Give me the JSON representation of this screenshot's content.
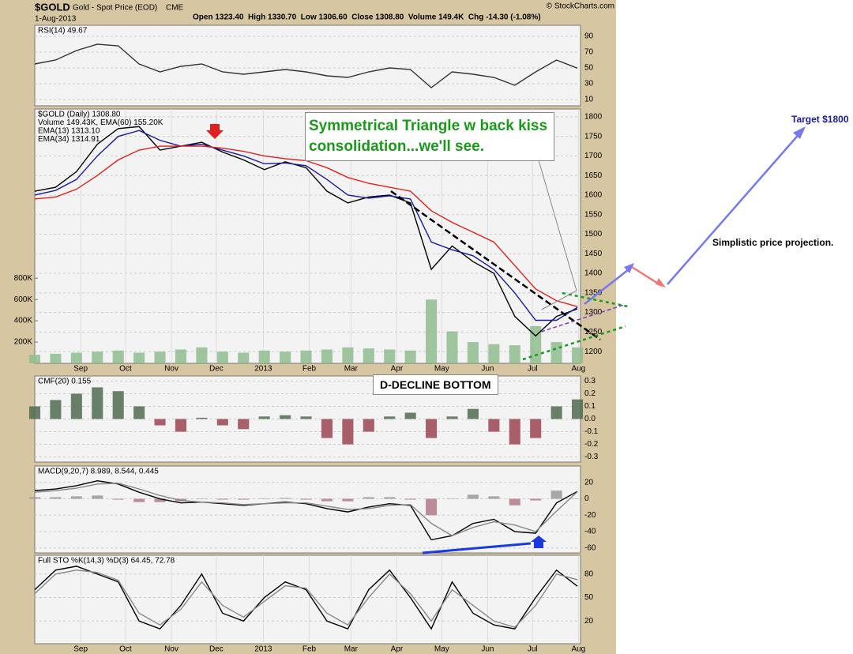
{
  "header": {
    "symbol": "$GOLD",
    "name": "Gold - Spot Price (EOD)",
    "exchange": "CME",
    "date": "1-Aug-2013",
    "quote": "Open 1323.40  High 1330.70  Low 1306.60  Close 1308.80  Volume 149.4K  Chg -14.30 (-1.08%)",
    "credit": "© StockCharts.com"
  },
  "annotations": {
    "triangle": "Symmetrical Triangle w back kiss consolidation...we'll see.",
    "bottom": "D-DECLINE BOTTOM",
    "target": "Target $1800",
    "projection": "Simplistic price projection."
  },
  "chart_data": [
    {
      "type": "line",
      "title": "RSI(14) 49.67",
      "x": [
        0,
        2,
        4,
        6,
        8,
        10,
        12,
        14,
        16,
        18,
        20,
        22,
        24,
        26,
        28,
        30,
        32,
        34,
        36,
        38,
        40,
        42,
        44,
        46,
        48,
        50,
        52
      ],
      "xlim": [
        0,
        52.3
      ],
      "ylim": [
        2,
        104
      ],
      "yticks": [
        90,
        70,
        50,
        30,
        10
      ],
      "series": [
        {
          "color": "#333333",
          "values": [
            55,
            60,
            72,
            80,
            78,
            55,
            45,
            52,
            55,
            45,
            42,
            45,
            48,
            45,
            40,
            38,
            45,
            50,
            48,
            25,
            45,
            42,
            38,
            28,
            45,
            60,
            49.67
          ]
        }
      ]
    },
    {
      "type": "line",
      "title": "$GOLD (Daily) 1308.80",
      "x": [
        0,
        2,
        4,
        6,
        8,
        10,
        12,
        14,
        16,
        18,
        20,
        22,
        24,
        26,
        28,
        30,
        32,
        34,
        36,
        38,
        40,
        42,
        44,
        46,
        48,
        50,
        52
      ],
      "xlim": [
        0,
        52.3
      ],
      "ylim": [
        1170,
        1820
      ],
      "yticks": [
        1200,
        1250,
        1300,
        1350,
        1400,
        1450,
        1500,
        1550,
        1600,
        1650,
        1700,
        1750,
        1800
      ],
      "y2lim": [
        0,
        2390000
      ],
      "y2ticks": [
        {
          "value": 200000,
          "label": "200K"
        },
        {
          "value": 400000,
          "label": "400K"
        },
        {
          "value": 600000,
          "label": "600K"
        },
        {
          "value": 800000,
          "label": "800K"
        }
      ],
      "xticks": [
        {
          "value": 4.4,
          "label": "Sep"
        },
        {
          "value": 8.7,
          "label": "Oct"
        },
        {
          "value": 13.1,
          "label": "Nov"
        },
        {
          "value": 17.4,
          "label": "Dec"
        },
        {
          "value": 21.9,
          "label": "2013"
        },
        {
          "value": 26.3,
          "label": "Feb"
        },
        {
          "value": 30.3,
          "label": "Mar"
        },
        {
          "value": 34.7,
          "label": "Apr"
        },
        {
          "value": 39,
          "label": "May"
        },
        {
          "value": 43.4,
          "label": "Jun"
        },
        {
          "value": 47.7,
          "label": "Jul"
        },
        {
          "value": 52.1,
          "label": "Aug"
        }
      ],
      "series": [
        {
          "type": "bar",
          "name": "Volume 149.43K, EMA(60) 155.20K",
          "axis": "y2",
          "color": "#8fbc8f",
          "values": [
            80000,
            90000,
            100000,
            110000,
            120000,
            100000,
            110000,
            130000,
            150000,
            110000,
            100000,
            120000,
            110000,
            120000,
            130000,
            150000,
            140000,
            130000,
            120000,
            600000,
            300000,
            200000,
            180000,
            170000,
            350000,
            200000,
            149430
          ]
        },
        {
          "color": "#000000",
          "values": [
            1610,
            1620,
            1660,
            1730,
            1770,
            1775,
            1715,
            1725,
            1735,
            1710,
            1690,
            1665,
            1685,
            1670,
            1610,
            1580,
            1595,
            1600,
            1580,
            1410,
            1470,
            1430,
            1400,
            1290,
            1240,
            1290,
            1309
          ]
        },
        {
          "name": "EMA(13) 1313.10",
          "color": "#1a1aa0",
          "values": [
            1600,
            1612,
            1640,
            1700,
            1750,
            1765,
            1740,
            1725,
            1730,
            1715,
            1700,
            1680,
            1682,
            1675,
            1640,
            1600,
            1592,
            1598,
            1590,
            1480,
            1460,
            1445,
            1410,
            1350,
            1280,
            1280,
            1313.1
          ]
        },
        {
          "name": "EMA(34) 1314.91",
          "color": "#e02020",
          "values": [
            1590,
            1595,
            1615,
            1650,
            1690,
            1715,
            1725,
            1725,
            1725,
            1720,
            1712,
            1700,
            1693,
            1688,
            1670,
            1645,
            1630,
            1620,
            1610,
            1560,
            1530,
            1505,
            1480,
            1420,
            1360,
            1330,
            1314.91
          ]
        }
      ]
    },
    {
      "type": "bar",
      "title": "CMF(20) 0.155",
      "x": [
        0,
        2,
        4,
        6,
        8,
        10,
        12,
        14,
        16,
        18,
        20,
        22,
        24,
        26,
        28,
        30,
        32,
        34,
        36,
        38,
        40,
        42,
        44,
        46,
        48,
        50,
        52
      ],
      "xlim": [
        0,
        52.3
      ],
      "ylim": [
        -0.34,
        0.34
      ],
      "yticks": [
        0.3,
        0.2,
        0.1,
        {
          "value": 0,
          "label": "0.0"
        },
        -0.1,
        -0.2,
        -0.3
      ],
      "series": [
        {
          "color": "#4f6b4f",
          "negative_color": "#9a4450",
          "values": [
            0.1,
            0.15,
            0.2,
            0.25,
            0.22,
            0.1,
            -0.05,
            -0.1,
            0.01,
            -0.05,
            -0.08,
            0.02,
            0.03,
            0.02,
            -0.15,
            -0.2,
            -0.1,
            0.02,
            0.05,
            -0.15,
            0.02,
            0.08,
            -0.1,
            -0.2,
            -0.15,
            0.1,
            0.155
          ]
        }
      ]
    },
    {
      "type": "line",
      "title": "MACD(9,20,7) 8.989, 8.544, 0.445",
      "x": [
        0,
        2,
        4,
        6,
        8,
        10,
        12,
        14,
        16,
        18,
        20,
        22,
        24,
        26,
        28,
        30,
        32,
        34,
        36,
        38,
        40,
        42,
        44,
        46,
        48,
        50,
        52
      ],
      "xlim": [
        0,
        52.3
      ],
      "ylim": [
        -66,
        40
      ],
      "yticks": [
        20,
        0,
        -20,
        -40,
        -60
      ],
      "series": [
        {
          "type": "bar",
          "color": "#999999",
          "negative_color": "#b07a88",
          "values": [
            2,
            2,
            3,
            4,
            -1,
            -4,
            -4,
            -3,
            0.5,
            -1,
            -1,
            0.5,
            1,
            -1,
            -3,
            -3,
            2,
            2,
            -1,
            -20,
            0.5,
            5,
            3,
            -8,
            -2,
            10,
            0.445
          ]
        },
        {
          "color": "#000000",
          "values": [
            10,
            12,
            16,
            22,
            18,
            8,
            0,
            -5,
            -4,
            -6,
            -8,
            -6,
            -4,
            -6,
            -12,
            -16,
            -10,
            -6,
            -8,
            -50,
            -45,
            -30,
            -25,
            -40,
            -42,
            -5,
            8.989
          ]
        },
        {
          "color": "#888888",
          "values": [
            8,
            10,
            13,
            18,
            19,
            12,
            4,
            -2,
            -4,
            -5,
            -7,
            -6,
            -5,
            -5,
            -9,
            -13,
            -12,
            -8,
            -7,
            -30,
            -45,
            -35,
            -28,
            -32,
            -40,
            -15,
            8.544
          ]
        }
      ]
    },
    {
      "type": "line",
      "title": "Full STO %K(14,3) %D(3) 64.45, 72.78",
      "x": [
        0,
        2,
        4,
        6,
        8,
        10,
        12,
        14,
        16,
        18,
        20,
        22,
        24,
        26,
        28,
        30,
        32,
        34,
        36,
        38,
        40,
        42,
        44,
        46,
        48,
        50,
        52
      ],
      "xlim": [
        0,
        52.3
      ],
      "ylim": [
        -9,
        104
      ],
      "yticks": [
        80,
        50,
        20
      ],
      "xticks": [
        {
          "value": 4.4,
          "label": "Sep"
        },
        {
          "value": 8.7,
          "label": "Oct"
        },
        {
          "value": 13.1,
          "label": "Nov"
        },
        {
          "value": 17.4,
          "label": "Dec"
        },
        {
          "value": 21.9,
          "label": "2013"
        },
        {
          "value": 26.3,
          "label": "Feb"
        },
        {
          "value": 30.3,
          "label": "Mar"
        },
        {
          "value": 34.7,
          "label": "Apr"
        },
        {
          "value": 39,
          "label": "May"
        },
        {
          "value": 43.4,
          "label": "Jun"
        },
        {
          "value": 47.7,
          "label": "Jul"
        },
        {
          "value": 52.1,
          "label": "Aug"
        }
      ],
      "series": [
        {
          "color": "#000000",
          "values": [
            60,
            85,
            90,
            80,
            70,
            20,
            10,
            40,
            80,
            30,
            20,
            50,
            70,
            60,
            20,
            10,
            60,
            85,
            50,
            10,
            70,
            30,
            15,
            10,
            50,
            85,
            64.45
          ]
        },
        {
          "color": "#888888",
          "values": [
            55,
            80,
            85,
            82,
            72,
            30,
            15,
            35,
            70,
            40,
            25,
            45,
            65,
            62,
            30,
            15,
            50,
            80,
            55,
            20,
            60,
            40,
            20,
            12,
            40,
            80,
            72.78
          ]
        }
      ]
    }
  ]
}
